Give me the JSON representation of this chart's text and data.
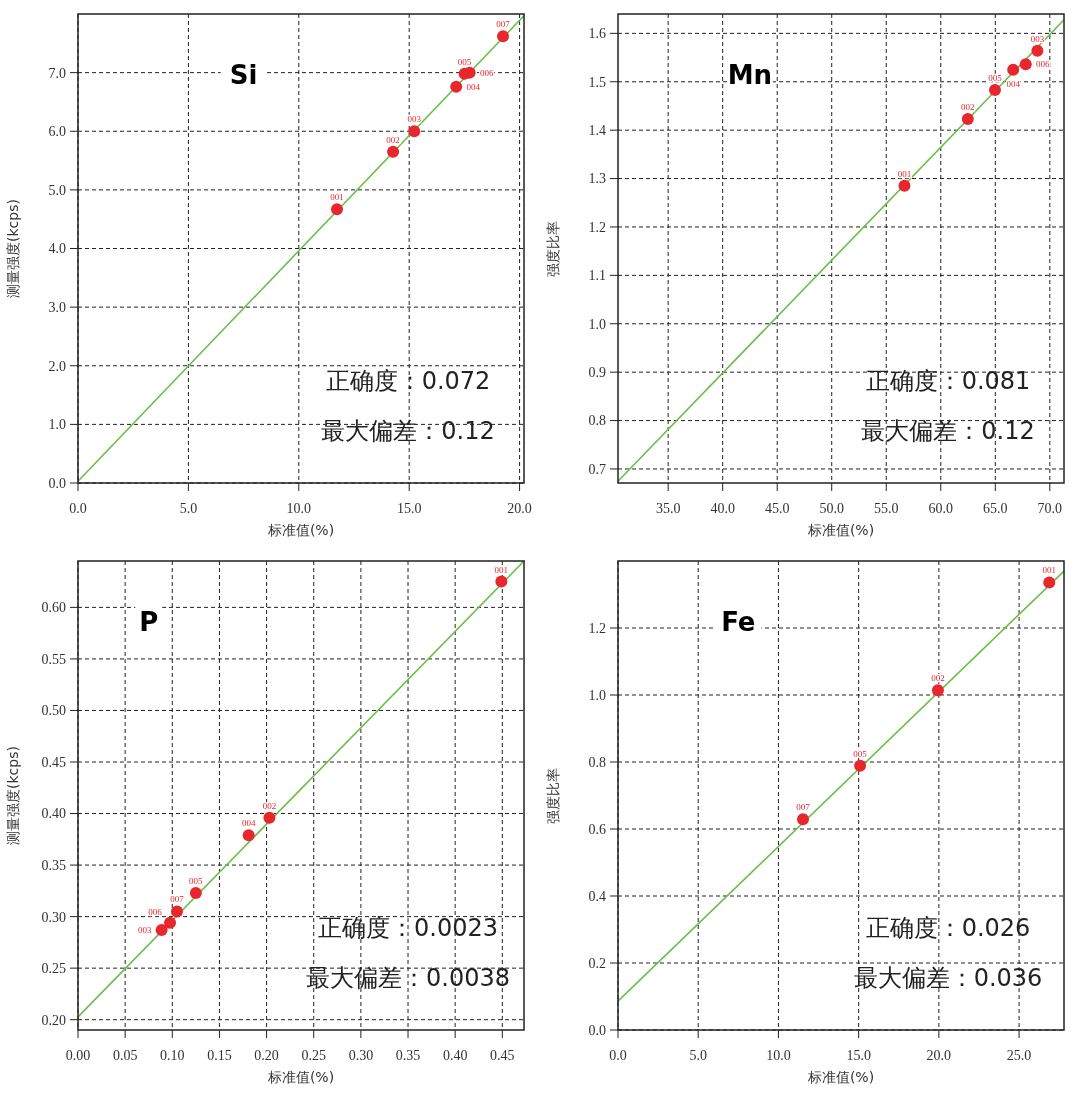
{
  "chart_data": [
    {
      "type": "scatter",
      "title": "Si",
      "xlabel": "标准值(%)",
      "ylabel": "测量强度(kcps)",
      "grid": true,
      "marker": "circle",
      "xlim": [
        0,
        20.2
      ],
      "ylim": [
        0,
        8
      ],
      "xticks": [
        {
          "value": 0,
          "label": "0.0"
        },
        {
          "value": 5,
          "label": "5.0"
        },
        {
          "value": 10,
          "label": "10.0"
        },
        {
          "value": 15,
          "label": "15.0"
        },
        {
          "value": 20,
          "label": "20.0"
        }
      ],
      "yticks": [
        {
          "value": 0,
          "label": "0.0"
        },
        {
          "value": 1,
          "label": "1.0"
        },
        {
          "value": 2,
          "label": "2.0"
        },
        {
          "value": 3,
          "label": "3.0"
        },
        {
          "value": 4,
          "label": "4.0"
        },
        {
          "value": 5,
          "label": "5.0"
        },
        {
          "value": 6,
          "label": "6.0"
        },
        {
          "value": 7,
          "label": "7.0"
        }
      ],
      "series": [
        {
          "type": "line",
          "color": "#6abf4b",
          "marker": "none",
          "x": [
            0,
            20.2
          ],
          "values": [
            0.03,
            7.97
          ]
        },
        {
          "color": "#e8262d",
          "x": [
            11.73,
            14.27,
            15.23,
            17.13,
            17.51,
            17.74,
            19.25
          ],
          "values": [
            4.67,
            5.65,
            6.0,
            6.76,
            6.98,
            7.0,
            7.62
          ]
        }
      ],
      "annotations": [
        {
          "text": "001",
          "x": 11.73,
          "y": 4.67
        },
        {
          "text": "002",
          "x": 14.27,
          "y": 5.65
        },
        {
          "text": "003",
          "x": 15.23,
          "y": 6.0
        },
        {
          "text": "004",
          "x": 17.13,
          "y": 6.76
        },
        {
          "text": "005",
          "x": 17.51,
          "y": 6.98
        },
        {
          "text": "006",
          "x": 17.74,
          "y": 7.0
        },
        {
          "text": "007",
          "x": 19.25,
          "y": 7.62
        },
        "正确度：0.072",
        "最大偏差：0.12"
      ]
    },
    {
      "type": "scatter",
      "title": "Mn",
      "xlabel": "标准值(%)",
      "ylabel": "强度比率",
      "grid": true,
      "marker": "circle",
      "xlim": [
        30.4,
        71.3
      ],
      "ylim": [
        0.671,
        1.64
      ],
      "xticks": [
        {
          "value": 35,
          "label": "35.0"
        },
        {
          "value": 40,
          "label": "40.0"
        },
        {
          "value": 45,
          "label": "45.0"
        },
        {
          "value": 50,
          "label": "50.0"
        },
        {
          "value": 55,
          "label": "55.0"
        },
        {
          "value": 60,
          "label": "60.0"
        },
        {
          "value": 65,
          "label": "65.0"
        },
        {
          "value": 70,
          "label": "70.0"
        }
      ],
      "yticks": [
        0.7,
        0.8,
        0.9,
        {
          "value": 1,
          "label": "1.0"
        },
        1.1,
        1.2,
        1.3,
        1.4,
        1.5,
        1.6
      ],
      "series": [
        {
          "type": "line",
          "color": "#6abf4b",
          "marker": "none",
          "x": [
            30.42,
            71.26
          ],
          "values": [
            0.675,
            1.627
          ]
        },
        {
          "color": "#e8262d",
          "x": [
            56.67,
            62.48,
            64.97,
            66.64,
            67.79,
            68.86
          ],
          "values": [
            1.285,
            1.423,
            1.483,
            1.525,
            1.536,
            1.564
          ]
        }
      ],
      "annotations": [
        {
          "text": "001",
          "x": 56.67,
          "y": 1.285
        },
        {
          "text": "002",
          "x": 62.48,
          "y": 1.423
        },
        {
          "text": "005",
          "x": 64.97,
          "y": 1.483
        },
        {
          "text": "004",
          "x": 66.64,
          "y": 1.525
        },
        {
          "text": "006",
          "x": 67.79,
          "y": 1.536
        },
        {
          "text": "003",
          "x": 68.86,
          "y": 1.564
        },
        "正确度：0.081",
        "最大偏差：0.12"
      ]
    },
    {
      "type": "scatter",
      "title": "P",
      "xlabel": "标准值(%)",
      "ylabel": "测量强度(kcps)",
      "grid": true,
      "marker": "circle",
      "xlim": [
        0,
        0.473
      ],
      "ylim": [
        0.19,
        0.645
      ],
      "xticks": [
        {
          "value": 0,
          "label": "0.00"
        },
        0.05,
        {
          "value": 0.1,
          "label": "0.10"
        },
        0.15,
        {
          "value": 0.2,
          "label": "0.20"
        },
        0.25,
        {
          "value": 0.3,
          "label": "0.30"
        },
        0.35,
        {
          "value": 0.4,
          "label": "0.40"
        },
        0.45
      ],
      "yticks": [
        {
          "value": 0.2,
          "label": "0.20"
        },
        0.25,
        {
          "value": 0.3,
          "label": "0.30"
        },
        0.35,
        {
          "value": 0.4,
          "label": "0.40"
        },
        0.45,
        {
          "value": 0.5,
          "label": "0.50"
        },
        0.55,
        {
          "value": 0.6,
          "label": "0.60"
        }
      ],
      "series": [
        {
          "type": "line",
          "color": "#6abf4b",
          "marker": "none",
          "x": [
            0,
            0.473
          ],
          "values": [
            0.2027,
            0.645
          ]
        },
        {
          "color": "#e8262d",
          "x": [
            0.0887,
            0.0976,
            0.105,
            0.125,
            0.181,
            0.203,
            0.449
          ],
          "values": [
            0.287,
            0.294,
            0.305,
            0.323,
            0.379,
            0.396,
            0.625
          ]
        }
      ],
      "annotations": [
        {
          "text": "003",
          "x": 0.0887,
          "y": 0.287
        },
        {
          "text": "006",
          "x": 0.0976,
          "y": 0.294
        },
        {
          "text": "007",
          "x": 0.105,
          "y": 0.305
        },
        {
          "text": "005",
          "x": 0.125,
          "y": 0.323
        },
        {
          "text": "004",
          "x": 0.181,
          "y": 0.379
        },
        {
          "text": "002",
          "x": 0.203,
          "y": 0.396
        },
        {
          "text": "001",
          "x": 0.449,
          "y": 0.625
        },
        "正确度：0.0023",
        "最大偏差：0.0038"
      ]
    },
    {
      "type": "scatter",
      "title": "Fe",
      "xlabel": "标准值(%)",
      "ylabel": "强度比率",
      "grid": true,
      "marker": "circle",
      "xlim": [
        0,
        27.8
      ],
      "ylim": [
        0,
        1.4
      ],
      "xticks": [
        {
          "value": 0,
          "label": "0.0"
        },
        {
          "value": 5,
          "label": "5.0"
        },
        {
          "value": 10,
          "label": "10.0"
        },
        {
          "value": 15,
          "label": "15.0"
        },
        {
          "value": 20,
          "label": "20.0"
        },
        {
          "value": 25,
          "label": "25.0"
        }
      ],
      "yticks": [
        {
          "value": 0,
          "label": "0.0"
        },
        0.2,
        0.4,
        0.6,
        0.8,
        {
          "value": 1,
          "label": "1.0"
        },
        1.2
      ],
      "series": [
        {
          "type": "line",
          "color": "#6abf4b",
          "marker": "none",
          "x": [
            0,
            27.8
          ],
          "values": [
            0.086,
            1.37
          ]
        },
        {
          "color": "#e8262d",
          "x": [
            11.53,
            15.09,
            19.94,
            26.88
          ],
          "values": [
            0.629,
            0.789,
            1.014,
            1.336
          ]
        }
      ],
      "annotations": [
        {
          "text": "007",
          "x": 11.53,
          "y": 0.629
        },
        {
          "text": "005",
          "x": 15.09,
          "y": 0.789
        },
        {
          "text": "002",
          "x": 19.94,
          "y": 1.014
        },
        {
          "text": "001",
          "x": 26.88,
          "y": 1.336
        },
        "正确度：0.026",
        "最大偏差：0.036"
      ]
    }
  ]
}
